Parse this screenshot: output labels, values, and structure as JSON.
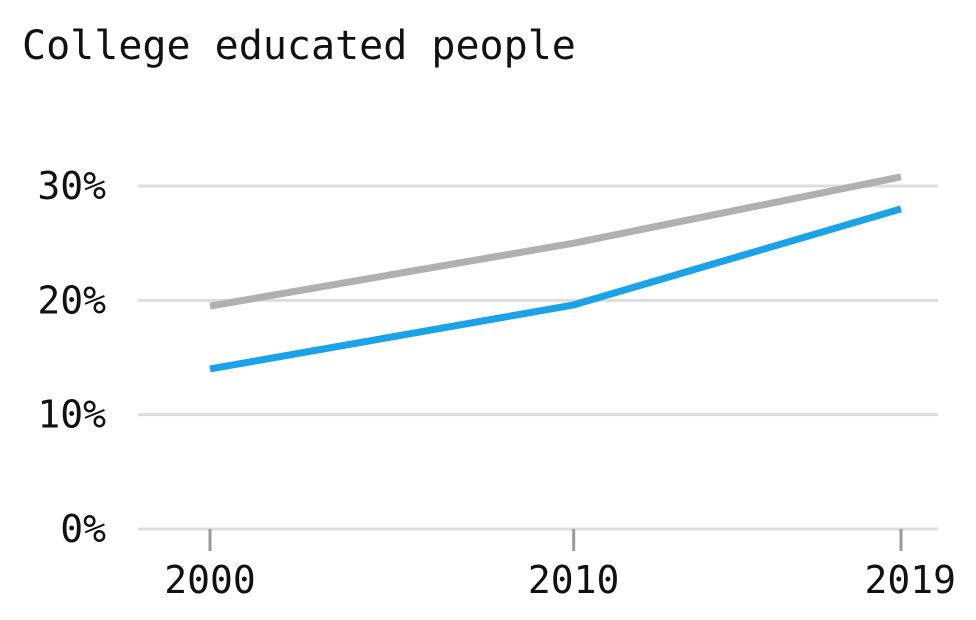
{
  "chart_data": {
    "type": "line",
    "title": "College educated people",
    "xlabel": "",
    "ylabel": "",
    "x": [
      2000,
      2010,
      2019
    ],
    "x_tick_labels": [
      "2000",
      "2010",
      "2019"
    ],
    "y_ticks": [
      0,
      10,
      20,
      30
    ],
    "y_tick_labels": [
      "0%",
      "10%",
      "20%",
      "30%"
    ],
    "ylim": [
      0,
      30
    ],
    "grid": "horizontal",
    "legend": "none",
    "series": [
      {
        "values": [
          19.5,
          25,
          30.8
        ],
        "color": "#b0b0b0"
      },
      {
        "values": [
          14,
          19.6,
          28
        ],
        "color": "#1aa3e8"
      }
    ],
    "colors": {
      "gridline": "#dddddd",
      "axis_tick": "#9a9a9a",
      "text": "#111111"
    }
  }
}
